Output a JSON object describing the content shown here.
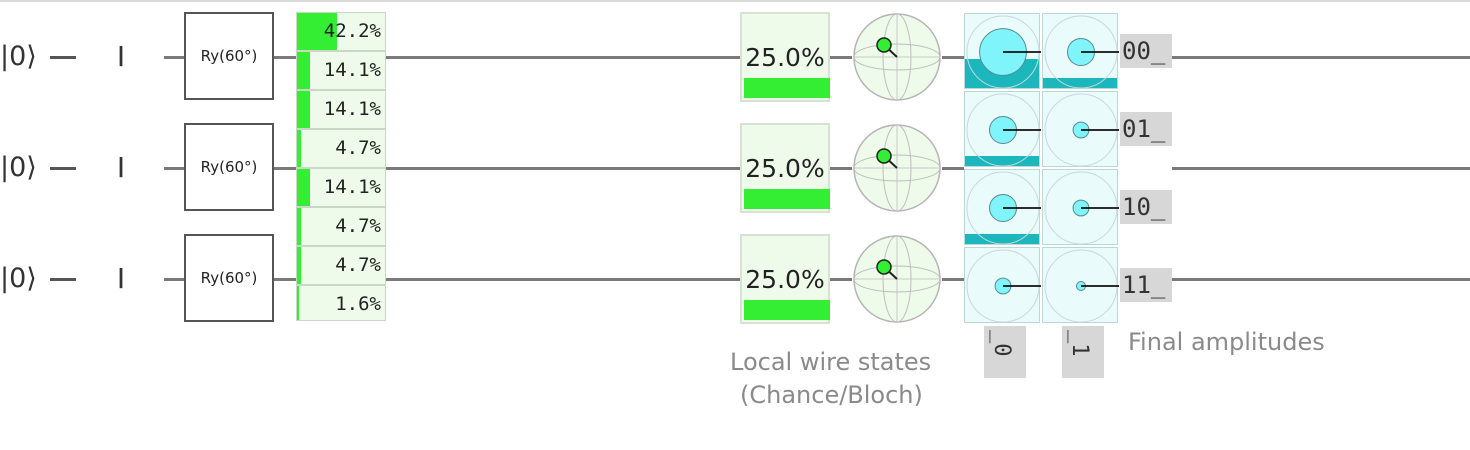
{
  "circuit": {
    "wires": [
      {
        "ket": "|0⟩",
        "identity": "I",
        "gate": "Ry(60°)",
        "chance": "25.0%",
        "chance_level": 0.25
      },
      {
        "ket": "|0⟩",
        "identity": "I",
        "gate": "Ry(60°)",
        "chance": "25.0%",
        "chance_level": 0.25
      },
      {
        "ket": "|0⟩",
        "identity": "I",
        "gate": "Ry(60°)",
        "chance": "25.0%",
        "chance_level": 0.25
      }
    ],
    "distribution": [
      {
        "label": "42.2%",
        "level": 0.422
      },
      {
        "label": "14.1%",
        "level": 0.141
      },
      {
        "label": "14.1%",
        "level": 0.141
      },
      {
        "label": "4.7%",
        "level": 0.047
      },
      {
        "label": "14.1%",
        "level": 0.141
      },
      {
        "label": "4.7%",
        "level": 0.047
      },
      {
        "label": "4.7%",
        "level": 0.047
      },
      {
        "label": "1.6%",
        "level": 0.016
      }
    ],
    "amplitudes": {
      "row_labels": [
        "00_",
        "01_",
        "10_",
        "11_"
      ],
      "column_labels": [
        "_0",
        "_1"
      ],
      "magnitudes": [
        [
          0.65,
          0.375
        ],
        [
          0.375,
          0.22
        ],
        [
          0.375,
          0.22
        ],
        [
          0.22,
          0.125
        ]
      ]
    },
    "captions": {
      "local_wire_states_line1": "Local wire states",
      "local_wire_states_line2": "(Chance/Bloch)",
      "final_amplitudes": "Final amplitudes"
    },
    "colors": {
      "chance_green": "#33ee33",
      "amplitude_cyan": "#7ff4fb",
      "amplitude_bar": "#1cb7bd",
      "wire": "#7a7a7a"
    }
  }
}
